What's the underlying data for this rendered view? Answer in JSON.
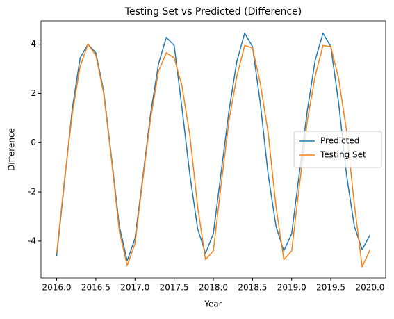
{
  "chart_data": {
    "type": "line",
    "title": "Testing Set vs Predicted (Difference)",
    "x_label": "Year",
    "y_label": "Difference",
    "x": [
      2016.0,
      2016.1,
      2016.2,
      2016.3,
      2016.4,
      2016.5,
      2016.6,
      2016.7,
      2016.8,
      2016.9,
      2017.0,
      2017.1,
      2017.2,
      2017.3,
      2017.4,
      2017.5,
      2017.6,
      2017.7,
      2017.8,
      2017.9,
      2018.0,
      2018.1,
      2018.2,
      2018.3,
      2018.4,
      2018.5,
      2018.6,
      2018.7,
      2018.8,
      2018.9,
      2019.0,
      2019.1,
      2019.2,
      2019.3,
      2019.4,
      2019.5,
      2019.6,
      2019.7,
      2019.8,
      2019.9,
      2020.0
    ],
    "series": [
      {
        "name": "Predicted",
        "color": "#1f77b4",
        "values": [
          -4.6,
          -1.6,
          1.4,
          3.45,
          4.0,
          3.65,
          2.1,
          -0.6,
          -3.4,
          -4.8,
          -3.9,
          -1.4,
          1.2,
          3.2,
          4.28,
          3.95,
          1.4,
          -1.3,
          -3.5,
          -4.5,
          -3.7,
          -1.2,
          1.3,
          3.3,
          4.45,
          3.9,
          1.6,
          -1.3,
          -3.4,
          -4.4,
          -3.7,
          -1.2,
          1.3,
          3.35,
          4.45,
          3.9,
          1.6,
          -1.3,
          -3.4,
          -4.35,
          -3.75
        ]
      },
      {
        "name": "Testing Set",
        "color": "#ff7f0e",
        "values": [
          -4.5,
          -1.5,
          1.2,
          3.1,
          4.0,
          3.55,
          2.0,
          -0.7,
          -3.6,
          -5.0,
          -4.1,
          -1.5,
          1.0,
          2.9,
          3.65,
          3.45,
          2.3,
          0.3,
          -2.6,
          -4.75,
          -4.4,
          -1.7,
          0.9,
          2.7,
          3.95,
          3.85,
          2.4,
          0.4,
          -2.6,
          -4.75,
          -4.4,
          -1.7,
          0.9,
          2.7,
          3.95,
          3.9,
          2.6,
          0.5,
          -2.5,
          -5.05,
          -4.35
        ]
      }
    ],
    "xlim": [
      2015.8,
      2020.2
    ],
    "ylim": [
      -5.5,
      4.95
    ],
    "xticks": [
      {
        "value": 2016,
        "label": "2016.0"
      },
      2016.5,
      {
        "value": 2017,
        "label": "2017.0"
      },
      2017.5,
      {
        "value": 2018,
        "label": "2018.0"
      },
      2018.5,
      {
        "value": 2019,
        "label": "2019.0"
      },
      2019.5,
      {
        "value": 2020,
        "label": "2020.0"
      }
    ],
    "yticks": [
      -4,
      -2,
      0,
      2,
      4
    ],
    "legend": "center right",
    "grid": false
  }
}
